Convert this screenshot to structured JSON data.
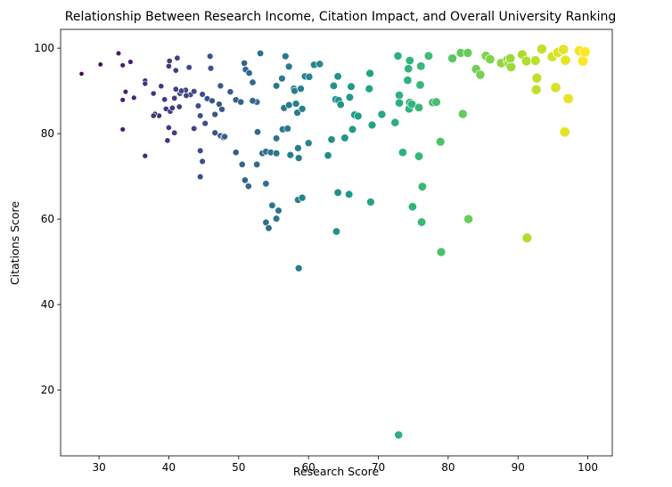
{
  "chart_data": {
    "type": "scatter",
    "title": "Relationship Between Research Income, Citation Impact, and Overall University Ranking",
    "xlabel": "Research Score",
    "ylabel": "Citations Score",
    "xlim": [
      24.5,
      103.5
    ],
    "ylim": [
      4.6,
      104.4
    ],
    "xticks": [
      30,
      40,
      50,
      60,
      70,
      80,
      90,
      100
    ],
    "yticks": [
      20,
      40,
      60,
      80,
      100
    ],
    "grid": false,
    "legend": "none",
    "colormap": "viridis",
    "points": [
      [
        27.5,
        94
      ],
      [
        30.2,
        96.2
      ],
      [
        32.8,
        98.8
      ],
      [
        33.4,
        96
      ],
      [
        34.5,
        96.8
      ],
      [
        33.8,
        89.8
      ],
      [
        33.4,
        87.9
      ],
      [
        35.0,
        88.4
      ],
      [
        33.4,
        81
      ],
      [
        36.6,
        92.4
      ],
      [
        36.6,
        91.7
      ],
      [
        37.8,
        89.4
      ],
      [
        38.9,
        91.1
      ],
      [
        39.4,
        88
      ],
      [
        38.6,
        84.2
      ],
      [
        39.6,
        85.8
      ],
      [
        40.2,
        85.2
      ],
      [
        40.8,
        88.3
      ],
      [
        41.0,
        90.4
      ],
      [
        40.1,
        97
      ],
      [
        40.0,
        95.8
      ],
      [
        41.2,
        97.7
      ],
      [
        41.0,
        94.8
      ],
      [
        42.9,
        95.5
      ],
      [
        40.0,
        81.4
      ],
      [
        39.8,
        78.4
      ],
      [
        40.8,
        80.2
      ],
      [
        41.6,
        89.4
      ],
      [
        42.4,
        90.2
      ],
      [
        43.1,
        89.1
      ],
      [
        43.6,
        89.9
      ],
      [
        44.2,
        86.5
      ],
      [
        44.8,
        89.2
      ],
      [
        44.5,
        84.2
      ],
      [
        45.2,
        82.4
      ],
      [
        43.6,
        81.2
      ],
      [
        44.5,
        76.0
      ],
      [
        44.8,
        73.5
      ],
      [
        44.5,
        69.9
      ],
      [
        36.6,
        74.8
      ],
      [
        38.0,
        84.6
      ],
      [
        37.8,
        84.2
      ],
      [
        40.5,
        86.0
      ],
      [
        41.5,
        86.3
      ],
      [
        41.8,
        90.0
      ],
      [
        42.5,
        88.9
      ],
      [
        45.5,
        88.2
      ],
      [
        46.2,
        87.7
      ],
      [
        46.6,
        84.5
      ],
      [
        47.2,
        86.9
      ],
      [
        47.6,
        85.7
      ],
      [
        48.8,
        89.8
      ],
      [
        47.4,
        79.5
      ],
      [
        47.8,
        79.1
      ],
      [
        46.6,
        80.2
      ],
      [
        48.0,
        79.3
      ],
      [
        49.6,
        87.9
      ],
      [
        50.3,
        87.4
      ],
      [
        49.6,
        75.6
      ],
      [
        50.5,
        72.8
      ],
      [
        50.9,
        69.1
      ],
      [
        51.4,
        67.7
      ],
      [
        52.6,
        87.4
      ],
      [
        52.7,
        80.4
      ],
      [
        52.6,
        72.8
      ],
      [
        53.4,
        75.4
      ],
      [
        53.9,
        75.8
      ],
      [
        53.9,
        68.3
      ],
      [
        54.6,
        75.6
      ],
      [
        54.8,
        63.2
      ],
      [
        55.7,
        62.0
      ],
      [
        55.4,
        60.1
      ],
      [
        53.9,
        59.2
      ],
      [
        54.3,
        57.9
      ],
      [
        55.4,
        75.4
      ],
      [
        57.4,
        75.0
      ],
      [
        58.6,
        48.5
      ],
      [
        58.5,
        64.5
      ],
      [
        59.1,
        65.0
      ],
      [
        51.0,
        95.0
      ],
      [
        45.9,
        98.1
      ],
      [
        50.8,
        96.5
      ],
      [
        52.0,
        92.0
      ],
      [
        53.1,
        98.8
      ],
      [
        55.4,
        91.2
      ],
      [
        46.0,
        95.3
      ],
      [
        47.4,
        91.2
      ],
      [
        51.5,
        94.2
      ],
      [
        52.0,
        87.7
      ],
      [
        56.5,
        86.0
      ],
      [
        57.2,
        86.7
      ],
      [
        57.9,
        90.5
      ],
      [
        58.2,
        87.0
      ],
      [
        58.4,
        84.9
      ],
      [
        59.1,
        85.8
      ],
      [
        55.4,
        78.9
      ],
      [
        56.3,
        81.0
      ],
      [
        57.0,
        81.2
      ],
      [
        58.5,
        76.6
      ],
      [
        58.6,
        74.3
      ],
      [
        56.2,
        92.9
      ],
      [
        56.7,
        98.1
      ],
      [
        57.2,
        95.7
      ],
      [
        58.0,
        90.0
      ],
      [
        58.9,
        90.5
      ],
      [
        59.5,
        93.4
      ],
      [
        60.1,
        93.3
      ],
      [
        60.8,
        96.1
      ],
      [
        61.6,
        96.3
      ],
      [
        60.0,
        77.8
      ],
      [
        62.8,
        74.9
      ],
      [
        63.3,
        78.6
      ],
      [
        63.9,
        88.0
      ],
      [
        63.6,
        91.2
      ],
      [
        64.3,
        87.8
      ],
      [
        64.6,
        86.8
      ],
      [
        64.2,
        93.4
      ],
      [
        65.9,
        88.5
      ],
      [
        66.1,
        91.0
      ],
      [
        65.2,
        79.0
      ],
      [
        66.3,
        81.0
      ],
      [
        66.6,
        84.4
      ],
      [
        67.1,
        84.1
      ],
      [
        68.7,
        90.5
      ],
      [
        68.8,
        94.1
      ],
      [
        69.1,
        82.0
      ],
      [
        70.5,
        84.5
      ],
      [
        72.4,
        82.6
      ],
      [
        72.8,
        98.2
      ],
      [
        73.0,
        89.0
      ],
      [
        73.0,
        87.2
      ],
      [
        73.5,
        75.6
      ],
      [
        74.5,
        87.3
      ],
      [
        74.4,
        85.8
      ],
      [
        74.2,
        92.5
      ],
      [
        74.3,
        95.2
      ],
      [
        74.5,
        97.1
      ],
      [
        76.1,
        95.8
      ],
      [
        77.2,
        98.2
      ],
      [
        77.8,
        87.3
      ],
      [
        78.3,
        87.4
      ],
      [
        74.8,
        86.9
      ],
      [
        75.8,
        86.1
      ],
      [
        76.0,
        91.4
      ],
      [
        75.8,
        74.7
      ],
      [
        78.9,
        78.1
      ],
      [
        82.1,
        84.6
      ],
      [
        74.9,
        62.9
      ],
      [
        76.2,
        59.3
      ],
      [
        76.3,
        67.6
      ],
      [
        79.0,
        52.3
      ],
      [
        82.9,
        60.0
      ],
      [
        64.2,
        66.2
      ],
      [
        64.0,
        57.1
      ],
      [
        65.8,
        65.8
      ],
      [
        68.9,
        64.0
      ],
      [
        72.9,
        9.5
      ],
      [
        80.6,
        97.6
      ],
      [
        81.8,
        98.9
      ],
      [
        82.8,
        98.9
      ],
      [
        84.0,
        95.1
      ],
      [
        84.6,
        93.8
      ],
      [
        85.4,
        98.2
      ],
      [
        86.0,
        97.4
      ],
      [
        87.6,
        96.5
      ],
      [
        88.5,
        97.3
      ],
      [
        88.7,
        96.4
      ],
      [
        89.0,
        95.6
      ],
      [
        88.9,
        97.6
      ],
      [
        90.6,
        98.5
      ],
      [
        91.2,
        97.0
      ],
      [
        92.5,
        97.1
      ],
      [
        92.7,
        93.0
      ],
      [
        92.6,
        90.3
      ],
      [
        93.4,
        99.8
      ],
      [
        94.9,
        98.0
      ],
      [
        95.4,
        90.8
      ],
      [
        95.7,
        99.0
      ],
      [
        96.5,
        99.7
      ],
      [
        96.8,
        97.2
      ],
      [
        96.7,
        80.4
      ],
      [
        97.2,
        88.2
      ],
      [
        98.8,
        99.4
      ],
      [
        99.3,
        97.0
      ],
      [
        99.6,
        99.1
      ],
      [
        91.3,
        55.6
      ]
    ]
  }
}
